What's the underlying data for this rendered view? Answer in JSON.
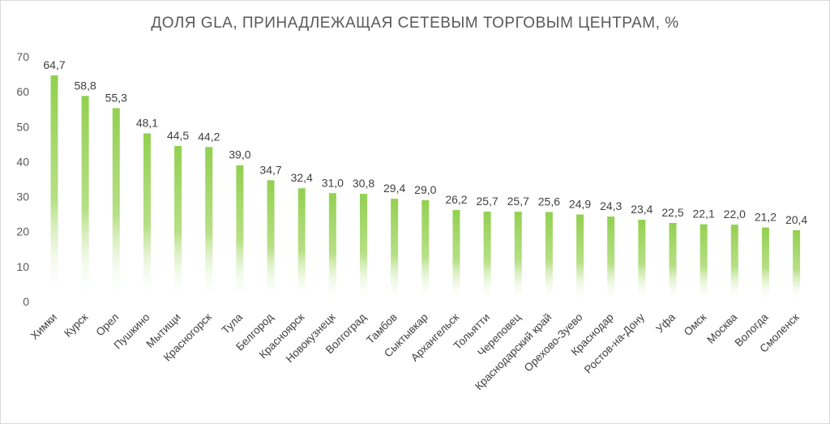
{
  "chart_data": {
    "type": "bar",
    "title": "ДОЛЯ GLA, ПРИНАДЛЕЖАЩАЯ СЕТЕВЫМ ТОРГОВЫМ ЦЕНТРАМ, %",
    "xlabel": "",
    "ylabel": "",
    "ylim": [
      0,
      70
    ],
    "yticks": [
      "0",
      "10",
      "20",
      "30",
      "40",
      "50",
      "60",
      "70"
    ],
    "grid": false,
    "bar_color": "#92d050",
    "categories": [
      "Химки",
      "Курск",
      "Орел",
      "Пушкино",
      "Мытищи",
      "Красногорск",
      "Тула",
      "Белгород",
      "Красноярск",
      "Новокузнецк",
      "Волгоград",
      "Тамбов",
      "Сыктывкар",
      "Архангельск",
      "Тольятти",
      "Череповец",
      "Краснодарский край",
      "Орехово-Зуево",
      "Краснодар",
      "Ростов-на-Дону",
      "Уфа",
      "Омск",
      "Москва",
      "Вологда",
      "Смоленск"
    ],
    "values": [
      64.7,
      58.8,
      55.3,
      48.1,
      44.5,
      44.2,
      39.0,
      34.7,
      32.4,
      31.0,
      30.8,
      29.4,
      29.0,
      26.2,
      25.7,
      25.7,
      25.6,
      24.9,
      24.3,
      23.4,
      22.5,
      22.1,
      22.0,
      21.2,
      20.4
    ],
    "labels": [
      "64,7",
      "58,8",
      "55,3",
      "48,1",
      "44,5",
      "44,2",
      "39,0",
      "34,7",
      "32,4",
      "31,0",
      "30,8",
      "29,4",
      "29,0",
      "26,2",
      "25,7",
      "25,7",
      "25,6",
      "24,9",
      "24,3",
      "23,4",
      "22,5",
      "22,1",
      "22,0",
      "21,2",
      "20,4"
    ]
  }
}
